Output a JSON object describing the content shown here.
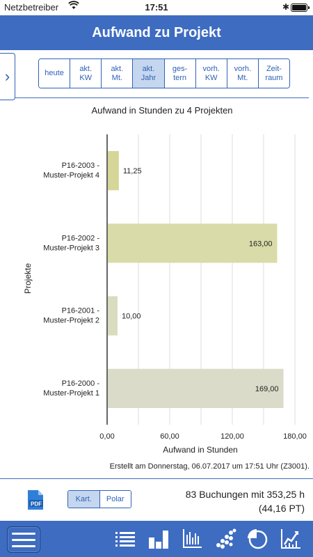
{
  "status": {
    "carrier": "Netzbetreiber",
    "time": "17:51"
  },
  "navbar": {
    "title": "Aufwand zu Projekt"
  },
  "periods": [
    {
      "label": "heute",
      "active": false
    },
    {
      "label": "akt.\nKW",
      "active": false
    },
    {
      "label": "akt.\nMt.",
      "active": false
    },
    {
      "label": "akt.\nJahr",
      "active": true
    },
    {
      "label": "ges-\ntern",
      "active": false
    },
    {
      "label": "vorh.\nKW",
      "active": false
    },
    {
      "label": "vorh.\nMt.",
      "active": false
    },
    {
      "label": "Zeit-\nraum",
      "active": false
    }
  ],
  "chart_data": {
    "type": "bar",
    "orientation": "horizontal",
    "title": "Aufwand in Stunden zu 4 Projekten",
    "xlabel": "Aufwand in Stunden",
    "ylabel": "Projekte",
    "xlim": [
      0,
      180
    ],
    "xticks": [
      "0,00",
      "60,00",
      "120,00",
      "180,00"
    ],
    "xtick_values": [
      0,
      60,
      120,
      180
    ],
    "grid": true,
    "categories": [
      [
        "P16-2003 -",
        "Muster-Projekt 4"
      ],
      [
        "P16-2002 -",
        "Muster-Projekt 3"
      ],
      [
        "P16-2001 -",
        "Muster-Projekt 2"
      ],
      [
        "P16-2000 -",
        "Muster-Projekt 1"
      ]
    ],
    "values": [
      11.25,
      163.0,
      10.0,
      169.0
    ],
    "value_labels": [
      "11,25",
      "163,00",
      "10,00",
      "169,00"
    ],
    "colors": [
      "#d5d698",
      "#d9dca8",
      "#dadcc0",
      "#dadcc9"
    ]
  },
  "footer": {
    "created": "Erstellt am Donnerstag, 06.07.2017 um 17:51 Uhr (Z3001)."
  },
  "view_toggle": {
    "cartesian": "Kart.",
    "polar": "Polar"
  },
  "summary": {
    "line1": "83 Buchungen mit 353,25 h",
    "line2": "(44,16 PT)"
  },
  "icons": {
    "pdf": "pdf-icon",
    "menu": "hamburger-icon",
    "tabs": [
      "list-icon",
      "bar-chart-icon",
      "timeline-chart-icon",
      "scatter-icon",
      "pie-icon",
      "line-chart-icon"
    ]
  }
}
